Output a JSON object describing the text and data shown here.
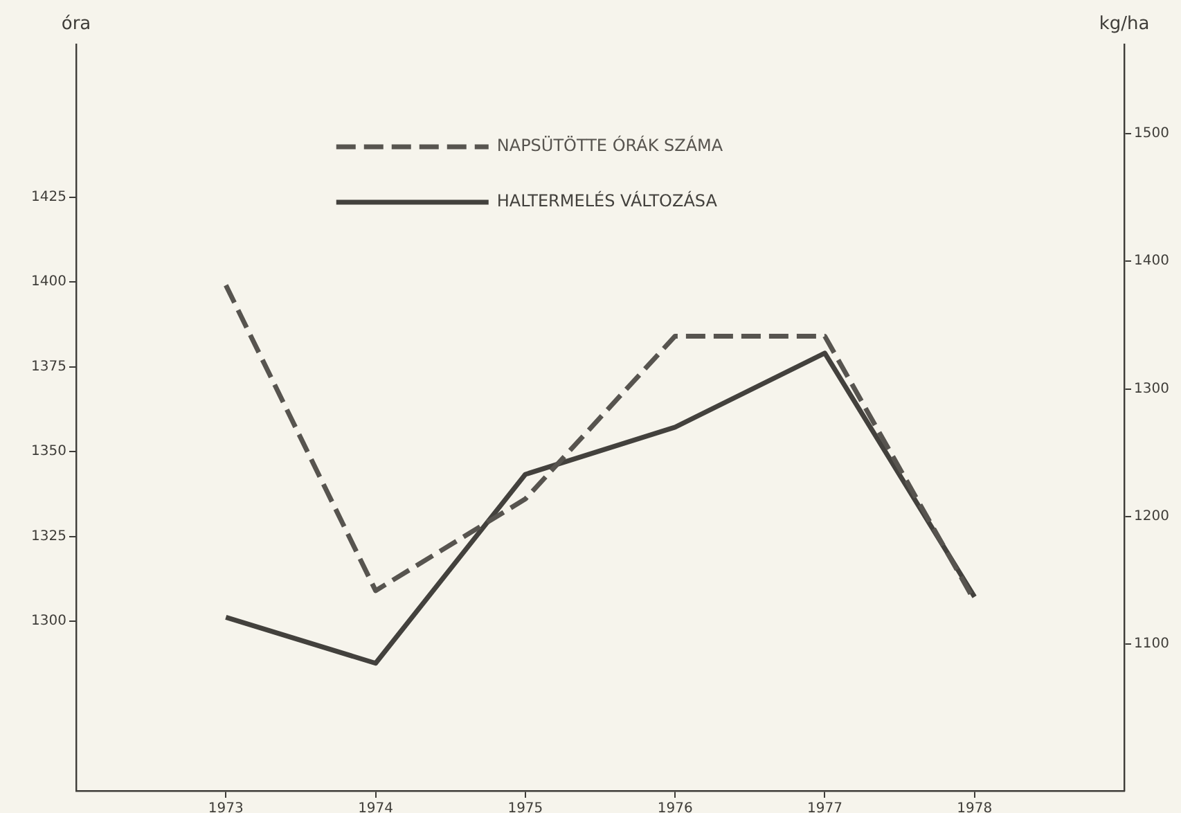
{
  "chart_data": {
    "type": "line",
    "ylabel": "óra",
    "y2label": "kg/ha",
    "x": [
      1973,
      1974,
      1975,
      1976,
      1977,
      1978
    ],
    "xlim": [
      1972,
      1979
    ],
    "xticks": [
      1973,
      1974,
      1975,
      1976,
      1977,
      1978
    ],
    "ylim": [
      1250,
      1470
    ],
    "yticks": [
      1300,
      1325,
      1350,
      1375,
      1400,
      1425
    ],
    "y2lim": [
      985,
      1570
    ],
    "y2ticks": [
      1100,
      1200,
      1300,
      1400,
      1500
    ],
    "series": [
      {
        "name": "NAPSÜTÖTTE ÓRÁK SZÁMA",
        "color": "#57544f",
        "values": [
          1399,
          1309,
          1336,
          1384,
          1384,
          1306
        ],
        "line_style": "dashed"
      },
      {
        "name": "HALTERMELÉS VÁLTOZÁSA",
        "color": "#43413d",
        "values": [
          1121,
          1085,
          1233,
          1270,
          1328,
          1137
        ],
        "axis": "y2",
        "line_style": "solid"
      }
    ],
    "legend": "top",
    "grid": false,
    "marker": "none"
  }
}
